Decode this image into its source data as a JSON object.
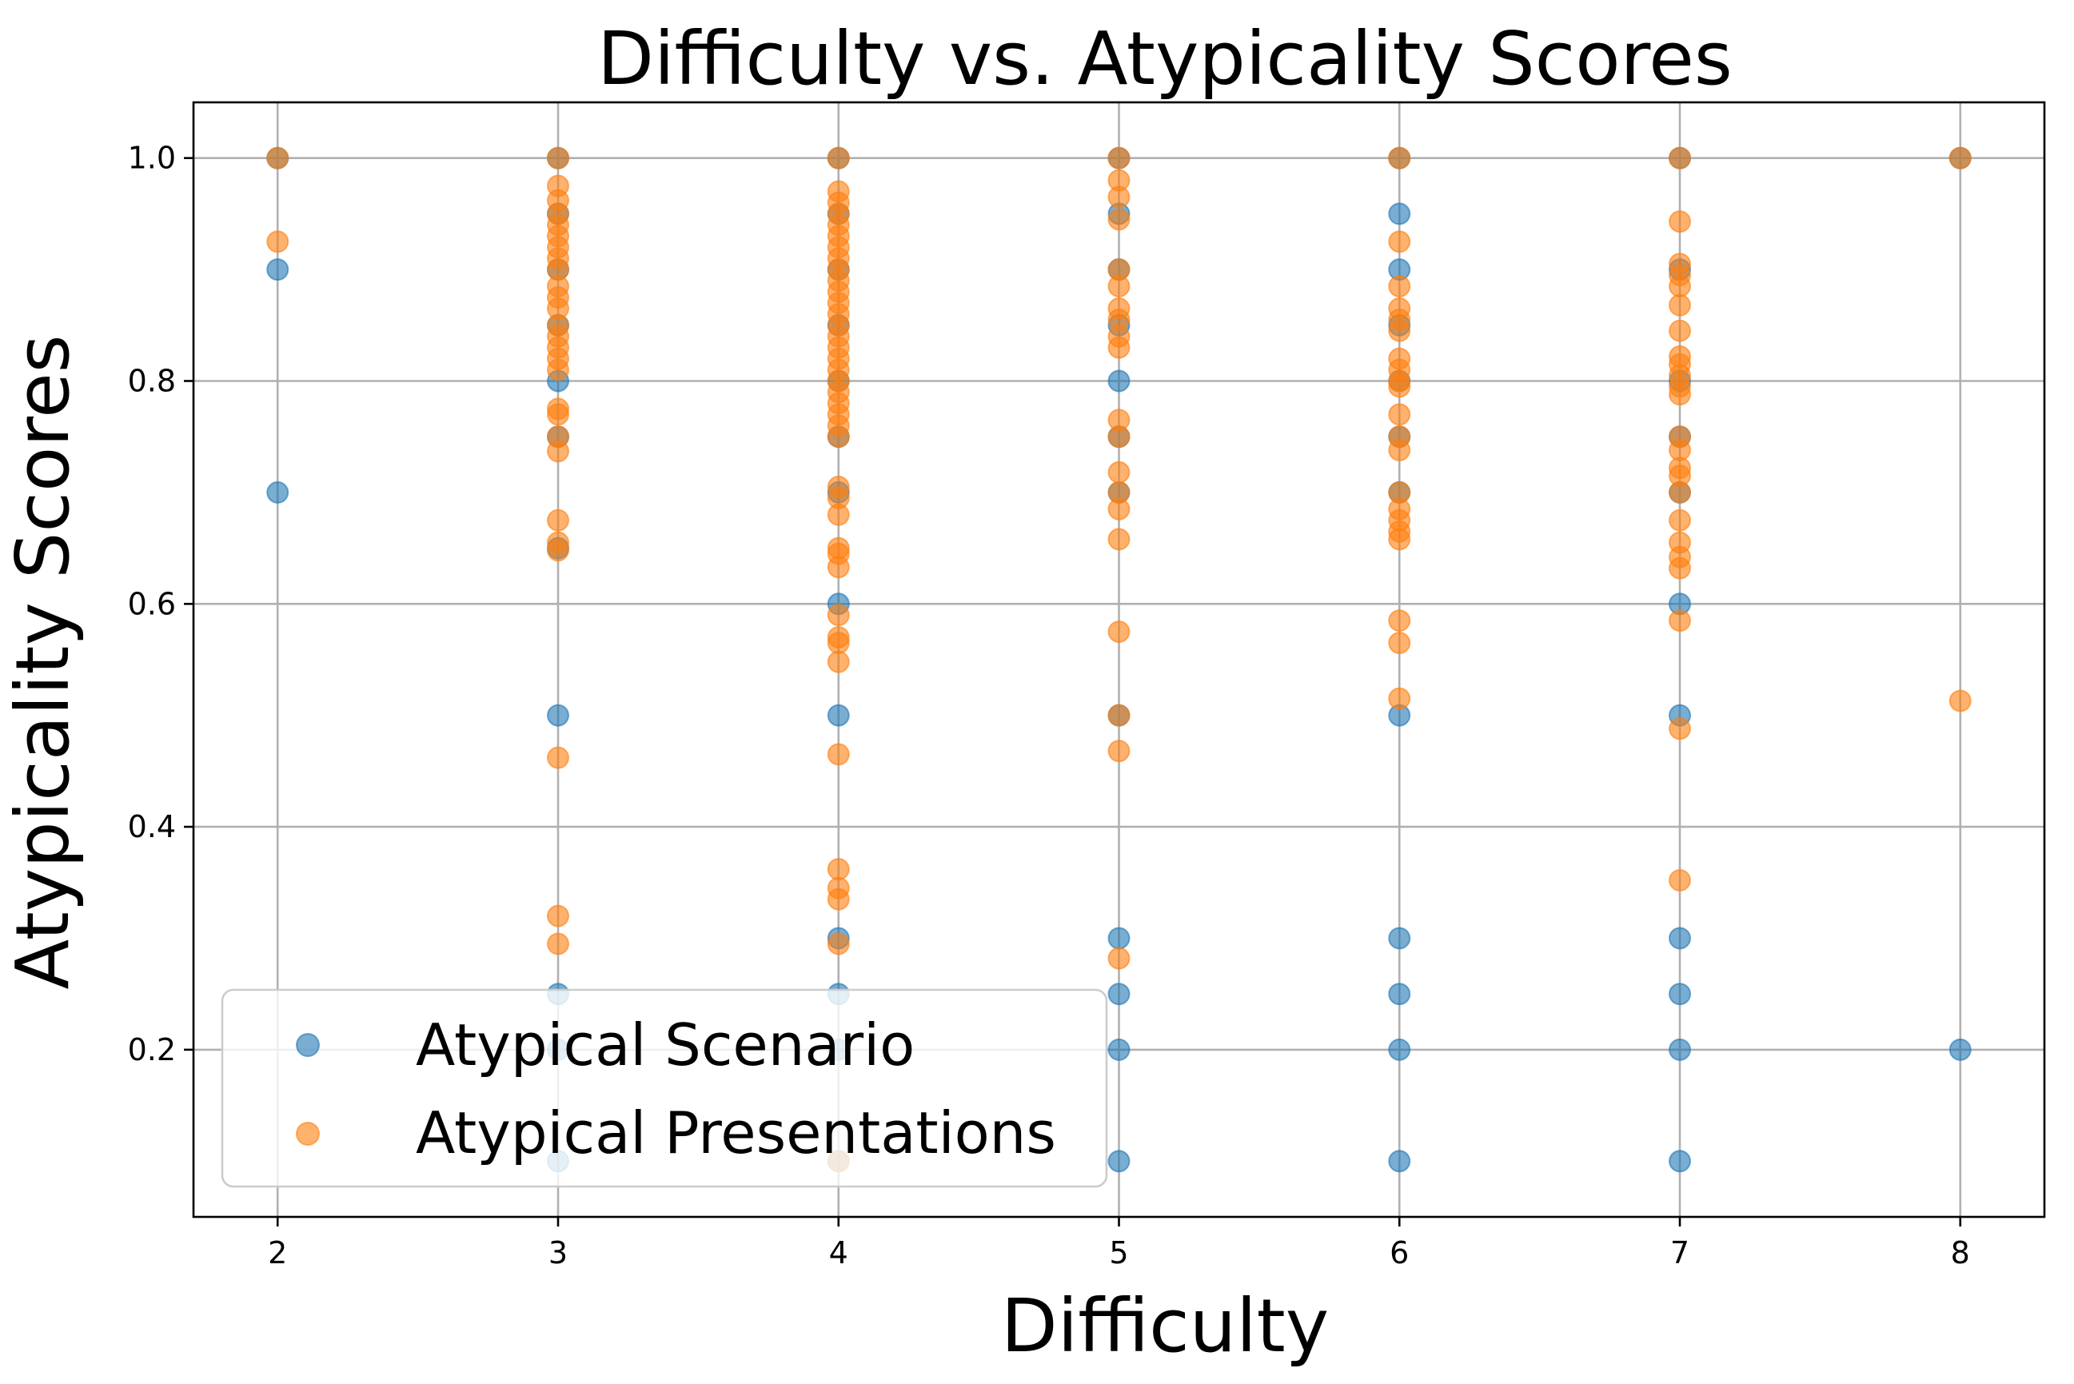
{
  "chart_data": {
    "type": "scatter",
    "title": "Difficulty vs. Atypicality Scores",
    "xlabel": "Difficulty",
    "ylabel": "Atypicality Scores",
    "xlim": [
      1.7,
      8.3
    ],
    "ylim": [
      0.05,
      1.05
    ],
    "xticks": [
      "2",
      "3",
      "4",
      "5",
      "6",
      "7",
      "8"
    ],
    "yticks": [
      "0.2",
      "0.4",
      "0.6",
      "0.8",
      "1.0"
    ],
    "grid": true,
    "legend_position": "lower-left",
    "series": [
      {
        "name": "Atypical Scenario",
        "color": "#1f77b4",
        "alpha": 0.6,
        "points": [
          [
            2,
            1.0
          ],
          [
            2,
            0.9
          ],
          [
            2,
            0.7
          ],
          [
            3,
            1.0
          ],
          [
            3,
            0.95
          ],
          [
            3,
            0.9
          ],
          [
            3,
            0.85
          ],
          [
            3,
            0.8
          ],
          [
            3,
            0.75
          ],
          [
            3,
            0.65
          ],
          [
            3,
            0.5
          ],
          [
            3,
            0.25
          ],
          [
            3,
            0.2
          ],
          [
            3,
            0.1
          ],
          [
            4,
            1.0
          ],
          [
            4,
            0.95
          ],
          [
            4,
            0.9
          ],
          [
            4,
            0.85
          ],
          [
            4,
            0.8
          ],
          [
            4,
            0.75
          ],
          [
            4,
            0.7
          ],
          [
            4,
            0.6
          ],
          [
            4,
            0.5
          ],
          [
            4,
            0.3
          ],
          [
            4,
            0.25
          ],
          [
            4,
            0.2
          ],
          [
            4,
            0.1
          ],
          [
            5,
            1.0
          ],
          [
            5,
            0.95
          ],
          [
            5,
            0.9
          ],
          [
            5,
            0.85
          ],
          [
            5,
            0.8
          ],
          [
            5,
            0.75
          ],
          [
            5,
            0.7
          ],
          [
            5,
            0.5
          ],
          [
            5,
            0.3
          ],
          [
            5,
            0.25
          ],
          [
            5,
            0.2
          ],
          [
            5,
            0.1
          ],
          [
            6,
            1.0
          ],
          [
            6,
            0.95
          ],
          [
            6,
            0.9
          ],
          [
            6,
            0.85
          ],
          [
            6,
            0.8
          ],
          [
            6,
            0.75
          ],
          [
            6,
            0.7
          ],
          [
            6,
            0.5
          ],
          [
            6,
            0.3
          ],
          [
            6,
            0.25
          ],
          [
            6,
            0.2
          ],
          [
            6,
            0.1
          ],
          [
            7,
            1.0
          ],
          [
            7,
            0.9
          ],
          [
            7,
            0.8
          ],
          [
            7,
            0.75
          ],
          [
            7,
            0.7
          ],
          [
            7,
            0.6
          ],
          [
            7,
            0.5
          ],
          [
            7,
            0.3
          ],
          [
            7,
            0.25
          ],
          [
            7,
            0.2
          ],
          [
            7,
            0.1
          ],
          [
            8,
            1.0
          ],
          [
            8,
            0.2
          ]
        ]
      },
      {
        "name": "Atypical Presentations",
        "color": "#ff7f0e",
        "alpha": 0.6,
        "points": [
          [
            2,
            1.0
          ],
          [
            2,
            0.925
          ],
          [
            3,
            1.0
          ],
          [
            3,
            0.975
          ],
          [
            3,
            0.962
          ],
          [
            3,
            0.95
          ],
          [
            3,
            0.94
          ],
          [
            3,
            0.93
          ],
          [
            3,
            0.92
          ],
          [
            3,
            0.91
          ],
          [
            3,
            0.9
          ],
          [
            3,
            0.885
          ],
          [
            3,
            0.875
          ],
          [
            3,
            0.865
          ],
          [
            3,
            0.85
          ],
          [
            3,
            0.84
          ],
          [
            3,
            0.83
          ],
          [
            3,
            0.82
          ],
          [
            3,
            0.81
          ],
          [
            3,
            0.775
          ],
          [
            3,
            0.77
          ],
          [
            3,
            0.75
          ],
          [
            3,
            0.737
          ],
          [
            3,
            0.675
          ],
          [
            3,
            0.655
          ],
          [
            3,
            0.648
          ],
          [
            3,
            0.462
          ],
          [
            3,
            0.32
          ],
          [
            3,
            0.295
          ],
          [
            4,
            1.0
          ],
          [
            4,
            0.97
          ],
          [
            4,
            0.96
          ],
          [
            4,
            0.95
          ],
          [
            4,
            0.94
          ],
          [
            4,
            0.93
          ],
          [
            4,
            0.92
          ],
          [
            4,
            0.91
          ],
          [
            4,
            0.9
          ],
          [
            4,
            0.89
          ],
          [
            4,
            0.88
          ],
          [
            4,
            0.87
          ],
          [
            4,
            0.86
          ],
          [
            4,
            0.85
          ],
          [
            4,
            0.84
          ],
          [
            4,
            0.83
          ],
          [
            4,
            0.82
          ],
          [
            4,
            0.81
          ],
          [
            4,
            0.8
          ],
          [
            4,
            0.79
          ],
          [
            4,
            0.78
          ],
          [
            4,
            0.77
          ],
          [
            4,
            0.76
          ],
          [
            4,
            0.75
          ],
          [
            4,
            0.705
          ],
          [
            4,
            0.695
          ],
          [
            4,
            0.68
          ],
          [
            4,
            0.65
          ],
          [
            4,
            0.645
          ],
          [
            4,
            0.633
          ],
          [
            4,
            0.59
          ],
          [
            4,
            0.57
          ],
          [
            4,
            0.565
          ],
          [
            4,
            0.548
          ],
          [
            4,
            0.465
          ],
          [
            4,
            0.362
          ],
          [
            4,
            0.345
          ],
          [
            4,
            0.335
          ],
          [
            4,
            0.295
          ],
          [
            4,
            0.1
          ],
          [
            5,
            1.0
          ],
          [
            5,
            0.98
          ],
          [
            5,
            0.965
          ],
          [
            5,
            0.945
          ],
          [
            5,
            0.9
          ],
          [
            5,
            0.885
          ],
          [
            5,
            0.865
          ],
          [
            5,
            0.855
          ],
          [
            5,
            0.84
          ],
          [
            5,
            0.83
          ],
          [
            5,
            0.75
          ],
          [
            5,
            0.765
          ],
          [
            5,
            0.718
          ],
          [
            5,
            0.7
          ],
          [
            5,
            0.685
          ],
          [
            5,
            0.658
          ],
          [
            5,
            0.575
          ],
          [
            5,
            0.5
          ],
          [
            5,
            0.468
          ],
          [
            5,
            0.282
          ],
          [
            6,
            1.0
          ],
          [
            6,
            0.925
          ],
          [
            6,
            0.885
          ],
          [
            6,
            0.865
          ],
          [
            6,
            0.855
          ],
          [
            6,
            0.845
          ],
          [
            6,
            0.82
          ],
          [
            6,
            0.81
          ],
          [
            6,
            0.8
          ],
          [
            6,
            0.795
          ],
          [
            6,
            0.77
          ],
          [
            6,
            0.75
          ],
          [
            6,
            0.738
          ],
          [
            6,
            0.7
          ],
          [
            6,
            0.685
          ],
          [
            6,
            0.675
          ],
          [
            6,
            0.665
          ],
          [
            6,
            0.658
          ],
          [
            6,
            0.585
          ],
          [
            6,
            0.565
          ],
          [
            6,
            0.515
          ],
          [
            7,
            1.0
          ],
          [
            7,
            0.943
          ],
          [
            7,
            0.905
          ],
          [
            7,
            0.895
          ],
          [
            7,
            0.885
          ],
          [
            7,
            0.868
          ],
          [
            7,
            0.845
          ],
          [
            7,
            0.822
          ],
          [
            7,
            0.815
          ],
          [
            7,
            0.805
          ],
          [
            7,
            0.795
          ],
          [
            7,
            0.788
          ],
          [
            7,
            0.75
          ],
          [
            7,
            0.738
          ],
          [
            7,
            0.722
          ],
          [
            7,
            0.715
          ],
          [
            7,
            0.7
          ],
          [
            7,
            0.675
          ],
          [
            7,
            0.655
          ],
          [
            7,
            0.642
          ],
          [
            7,
            0.632
          ],
          [
            7,
            0.585
          ],
          [
            7,
            0.488
          ],
          [
            7,
            0.352
          ],
          [
            8,
            1.0
          ],
          [
            8,
            0.513
          ]
        ]
      }
    ]
  }
}
